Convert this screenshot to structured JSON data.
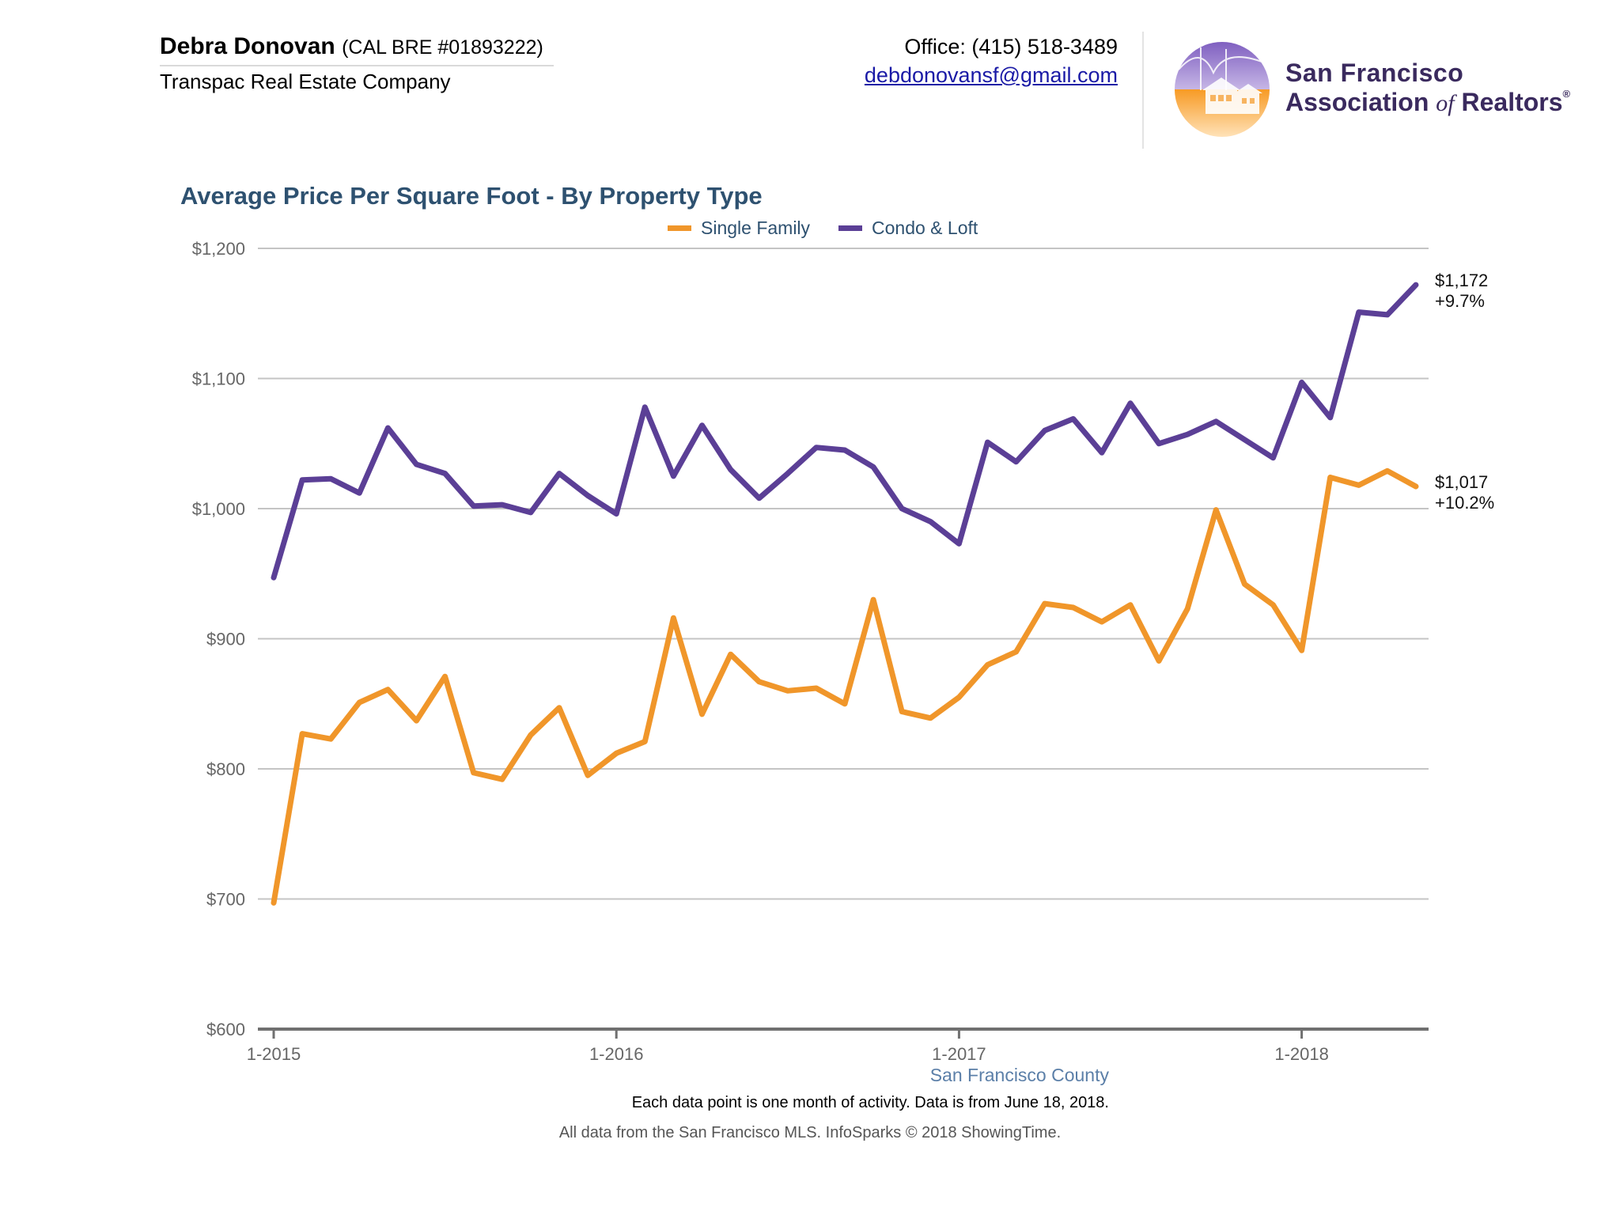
{
  "header": {
    "agent_name": "Debra Donovan",
    "agent_license": "(CAL BRE #01893222)",
    "company": "Transpac Real Estate Company",
    "office_phone": "Office: (415) 518-3489",
    "email": "debdonovansf@gmail.com",
    "association_line1": "San Francisco",
    "association_line2_a": "Association",
    "association_line2_of": "of",
    "association_line2_b": "Realtors",
    "association_mark": "®",
    "logo_icon": "golden-gate-bridge-houses-emblem"
  },
  "chart_data": {
    "type": "line",
    "title": "Average Price Per Square Foot - By Property Type",
    "xlabel": "",
    "ylabel": "",
    "ylim": [
      600,
      1200
    ],
    "yticks": [
      600,
      700,
      800,
      900,
      1000,
      1100,
      1200
    ],
    "ytick_labels": [
      "$600",
      "$700",
      "$800",
      "$900",
      "$1,000",
      "$1,100",
      "$1,200"
    ],
    "xticks": [
      {
        "index": 0,
        "label": "1-2015"
      },
      {
        "index": 12,
        "label": "1-2016"
      },
      {
        "index": 24,
        "label": "1-2017"
      },
      {
        "index": 36,
        "label": "1-2018"
      }
    ],
    "grid": true,
    "legend_position": "top-center",
    "x": [
      "1-2015",
      "2-2015",
      "3-2015",
      "4-2015",
      "5-2015",
      "6-2015",
      "7-2015",
      "8-2015",
      "9-2015",
      "10-2015",
      "11-2015",
      "12-2015",
      "1-2016",
      "2-2016",
      "3-2016",
      "4-2016",
      "5-2016",
      "6-2016",
      "7-2016",
      "8-2016",
      "9-2016",
      "10-2016",
      "11-2016",
      "12-2016",
      "1-2017",
      "2-2017",
      "3-2017",
      "4-2017",
      "5-2017",
      "6-2017",
      "7-2017",
      "8-2017",
      "9-2017",
      "10-2017",
      "11-2017",
      "12-2017",
      "1-2018",
      "2-2018",
      "3-2018",
      "4-2018",
      "5-2018"
    ],
    "series": [
      {
        "name": "Single Family",
        "color": "#f0962a",
        "values": [
          697,
          827,
          823,
          851,
          861,
          837,
          871,
          797,
          792,
          826,
          847,
          795,
          812,
          821,
          916,
          842,
          888,
          867,
          860,
          862,
          850,
          930,
          844,
          839,
          855,
          880,
          890,
          927,
          924,
          913,
          926,
          883,
          923,
          999,
          942,
          926,
          891,
          1024,
          1018,
          1029,
          1017
        ],
        "end_label": "$1,017",
        "end_change": "+10.2%"
      },
      {
        "name": "Condo & Loft",
        "color": "#5b3f96",
        "values": [
          947,
          1022,
          1023,
          1012,
          1062,
          1034,
          1027,
          1002,
          1003,
          997,
          1027,
          1010,
          996,
          1078,
          1025,
          1064,
          1030,
          1008,
          1027,
          1047,
          1045,
          1032,
          1000,
          990,
          973,
          1051,
          1036,
          1060,
          1069,
          1043,
          1081,
          1050,
          1057,
          1067,
          1053,
          1039,
          1097,
          1070,
          1151,
          1149,
          1172
        ],
        "end_label": "$1,172",
        "end_change": "+9.7%"
      }
    ],
    "region": "San Francisco County",
    "footnote": "Each data point is one month of activity. Data is from June 18, 2018."
  },
  "footer": {
    "source": "All data from the San Francisco MLS. InfoSparks © 2018 ShowingTime."
  }
}
